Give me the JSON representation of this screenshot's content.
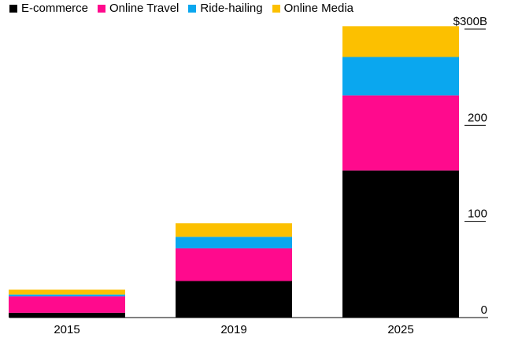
{
  "chart_data": {
    "type": "bar",
    "stacked": true,
    "categories": [
      "2015",
      "2019",
      "2025"
    ],
    "series": [
      {
        "name": "E-commerce",
        "color": "#000000",
        "values": [
          5,
          38,
          153
        ]
      },
      {
        "name": "Online Travel",
        "color": "#ff0a8d",
        "values": [
          17,
          34,
          78
        ]
      },
      {
        "name": "Ride-hailing",
        "color": "#0aa7ef",
        "values": [
          2,
          12,
          40
        ]
      },
      {
        "name": "Online Media",
        "color": "#fcc000",
        "values": [
          5,
          14,
          32
        ]
      }
    ],
    "y_ticks": [
      {
        "value": 0,
        "label": "0"
      },
      {
        "value": 100,
        "label": "100"
      },
      {
        "value": 200,
        "label": "200"
      },
      {
        "value": 300,
        "label": "$300B"
      }
    ],
    "ylim": [
      0,
      300
    ],
    "legend_position": "top-left",
    "grid": false,
    "title": "",
    "xlabel": "",
    "ylabel": ""
  }
}
